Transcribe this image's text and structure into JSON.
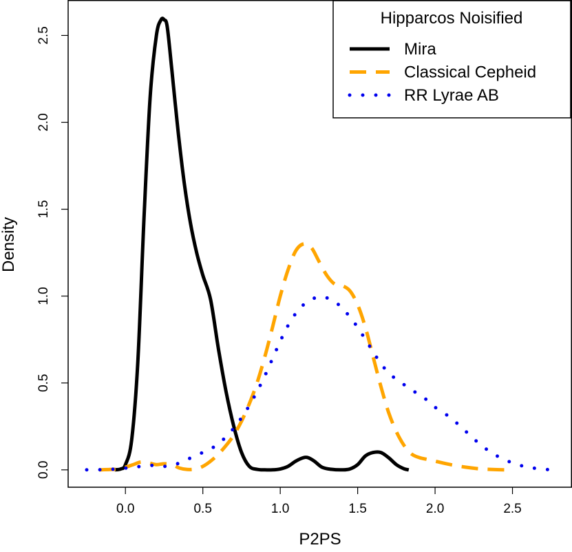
{
  "chart_data": {
    "type": "line",
    "title": "",
    "xlabel": "P2PS",
    "ylabel": "Density",
    "xlim": [
      -0.37,
      2.88
    ],
    "ylim": [
      -0.1,
      2.7
    ],
    "xticks": [
      0.0,
      0.5,
      1.0,
      1.5,
      2.0,
      2.5
    ],
    "xtick_labels": [
      "0.0",
      "0.5",
      "1.0",
      "1.5",
      "2.0",
      "2.5"
    ],
    "yticks": [
      0.0,
      0.5,
      1.0,
      1.5,
      2.0,
      2.5
    ],
    "ytick_labels": [
      "0.0",
      "0.5",
      "1.0",
      "1.5",
      "2.0",
      "2.5"
    ],
    "grid": false,
    "legend": {
      "title": "Hipparcos Noisified",
      "position": "top-right"
    },
    "series": [
      {
        "name": "Mira",
        "color": "#000000",
        "style": "solid",
        "x": [
          -0.07,
          -0.03,
          0.0,
          0.04,
          0.08,
          0.12,
          0.16,
          0.2,
          0.23,
          0.25,
          0.27,
          0.3,
          0.34,
          0.38,
          0.42,
          0.46,
          0.5,
          0.55,
          0.6,
          0.65,
          0.7,
          0.75,
          0.8,
          0.85,
          0.9,
          0.95,
          1.0,
          1.05,
          1.1,
          1.15,
          1.18,
          1.22,
          1.27,
          1.33,
          1.4,
          1.45,
          1.5,
          1.55,
          1.6,
          1.65,
          1.7,
          1.75,
          1.8,
          1.83
        ],
        "values": [
          0.0,
          0.005,
          0.03,
          0.17,
          0.62,
          1.45,
          2.15,
          2.5,
          2.59,
          2.59,
          2.55,
          2.3,
          1.95,
          1.65,
          1.42,
          1.25,
          1.12,
          0.98,
          0.7,
          0.45,
          0.25,
          0.1,
          0.02,
          0.003,
          0.0,
          0.0,
          0.005,
          0.02,
          0.05,
          0.07,
          0.07,
          0.05,
          0.015,
          0.003,
          0.0,
          0.005,
          0.03,
          0.08,
          0.1,
          0.1,
          0.07,
          0.03,
          0.006,
          0.0
        ]
      },
      {
        "name": "Classical Cepheid",
        "color": "#FFA500",
        "style": "dashed",
        "x": [
          -0.17,
          -0.1,
          -0.05,
          0.0,
          0.05,
          0.1,
          0.15,
          0.2,
          0.25,
          0.3,
          0.35,
          0.4,
          0.45,
          0.5,
          0.55,
          0.6,
          0.65,
          0.7,
          0.75,
          0.8,
          0.85,
          0.9,
          0.95,
          1.0,
          1.05,
          1.1,
          1.15,
          1.2,
          1.25,
          1.3,
          1.35,
          1.4,
          1.45,
          1.5,
          1.55,
          1.6,
          1.65,
          1.7,
          1.75,
          1.8,
          1.85,
          1.9,
          1.95,
          2.0,
          2.1,
          2.2,
          2.3,
          2.4,
          2.45
        ],
        "values": [
          0.0,
          0.002,
          0.005,
          0.015,
          0.03,
          0.045,
          0.04,
          0.03,
          0.035,
          0.03,
          0.01,
          0.002,
          0.005,
          0.02,
          0.05,
          0.09,
          0.14,
          0.2,
          0.28,
          0.38,
          0.5,
          0.65,
          0.82,
          1.0,
          1.15,
          1.26,
          1.3,
          1.28,
          1.2,
          1.12,
          1.07,
          1.06,
          1.03,
          0.95,
          0.82,
          0.65,
          0.48,
          0.33,
          0.22,
          0.14,
          0.09,
          0.07,
          0.06,
          0.05,
          0.03,
          0.015,
          0.005,
          0.001,
          0.0
        ]
      },
      {
        "name": "RR Lyrae AB",
        "color": "#0000EE",
        "style": "dotted",
        "x": [
          -0.25,
          -0.15,
          -0.05,
          0.0,
          0.05,
          0.1,
          0.15,
          0.2,
          0.25,
          0.3,
          0.35,
          0.4,
          0.45,
          0.5,
          0.55,
          0.6,
          0.65,
          0.7,
          0.75,
          0.8,
          0.85,
          0.9,
          0.95,
          1.0,
          1.05,
          1.1,
          1.15,
          1.2,
          1.25,
          1.3,
          1.35,
          1.4,
          1.45,
          1.5,
          1.55,
          1.6,
          1.65,
          1.7,
          1.75,
          1.8,
          1.85,
          1.9,
          1.95,
          2.0,
          2.1,
          2.2,
          2.3,
          2.4,
          2.5,
          2.6,
          2.7,
          2.75
        ],
        "values": [
          0.0,
          0.001,
          0.005,
          0.01,
          0.015,
          0.02,
          0.025,
          0.025,
          0.02,
          0.025,
          0.04,
          0.06,
          0.08,
          0.1,
          0.12,
          0.15,
          0.19,
          0.24,
          0.3,
          0.37,
          0.45,
          0.54,
          0.64,
          0.74,
          0.83,
          0.9,
          0.95,
          0.98,
          0.995,
          0.99,
          0.97,
          0.93,
          0.88,
          0.82,
          0.75,
          0.68,
          0.61,
          0.56,
          0.52,
          0.49,
          0.46,
          0.43,
          0.4,
          0.36,
          0.3,
          0.22,
          0.14,
          0.08,
          0.04,
          0.015,
          0.004,
          0.0
        ]
      }
    ]
  }
}
